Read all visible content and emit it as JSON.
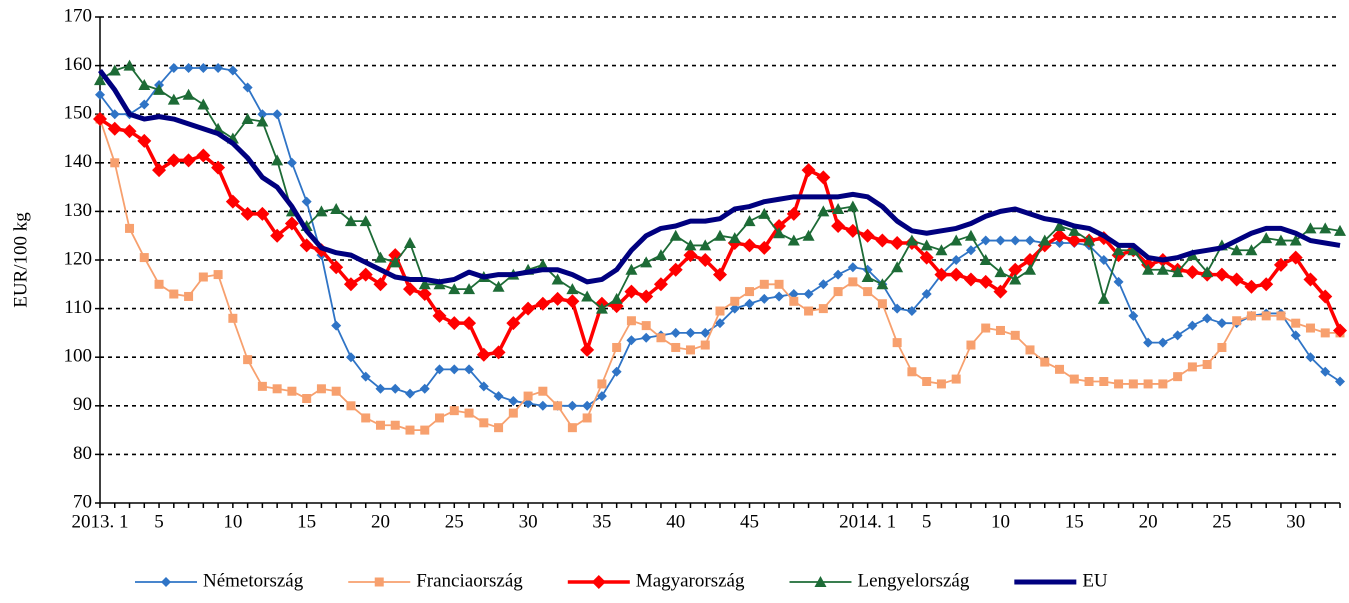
{
  "chart_data": {
    "type": "line",
    "ylabel": "EUR/100 kg",
    "categories": [
      "2013. 1",
      null,
      null,
      null,
      "5",
      null,
      null,
      null,
      null,
      "10",
      null,
      null,
      null,
      null,
      "15",
      null,
      null,
      null,
      null,
      "20",
      null,
      null,
      null,
      null,
      "25",
      null,
      null,
      null,
      null,
      "30",
      null,
      null,
      null,
      null,
      "35",
      null,
      null,
      null,
      null,
      "40",
      null,
      null,
      null,
      null,
      "45",
      null,
      null,
      null,
      null,
      null,
      null,
      null,
      "2014. 1",
      null,
      null,
      null,
      "5",
      null,
      null,
      null,
      null,
      "10",
      null,
      null,
      null,
      null,
      "15",
      null,
      null,
      null,
      null,
      "20",
      null,
      null,
      null,
      null,
      "25",
      null,
      null,
      null,
      null,
      "30",
      null,
      null,
      null
    ],
    "ylim": [
      70,
      170
    ],
    "yticks": [
      70,
      80,
      90,
      100,
      110,
      120,
      130,
      140,
      150,
      160,
      170
    ],
    "grid": true,
    "legend": "bottom",
    "series": [
      {
        "name": "Németország",
        "color": "#2f74c6",
        "marker": "diamond",
        "values": [
          154,
          150,
          150,
          152,
          156,
          159.5,
          159.5,
          159.5,
          159.5,
          159,
          155.5,
          150,
          150,
          140,
          132,
          121,
          106.5,
          100,
          96,
          93.5,
          93.5,
          92.5,
          93.5,
          97.5,
          97.5,
          97.5,
          94,
          92,
          91,
          90.5,
          90,
          90,
          90,
          90,
          92,
          97,
          103.5,
          104,
          104.5,
          105,
          105,
          105,
          107,
          110,
          111,
          112,
          112.5,
          113,
          113,
          115,
          117,
          118.5,
          118,
          115,
          110,
          109.5,
          113,
          117,
          120,
          122,
          124,
          124,
          124,
          124,
          123.5,
          123.5,
          123.5,
          123,
          120,
          115.5,
          108.5,
          103,
          103,
          104.5,
          106.5,
          108,
          107,
          107,
          108.5,
          109,
          109,
          104.5,
          100,
          97,
          95
        ]
      },
      {
        "name": "Franciaország",
        "color": "#f7a06e",
        "marker": "square",
        "values": [
          149,
          140,
          126.5,
          120.5,
          115,
          113,
          112.5,
          116.5,
          117,
          108,
          99.5,
          94,
          93.5,
          93,
          91.5,
          93.5,
          93,
          90,
          87.5,
          86,
          86,
          85,
          85,
          87.5,
          89,
          88.5,
          86.5,
          85.5,
          88.5,
          92,
          93,
          90,
          85.5,
          87.5,
          94.5,
          102,
          107.5,
          106.5,
          104,
          102,
          101.5,
          102.5,
          109.5,
          111.5,
          113.5,
          115,
          115,
          111.5,
          109.5,
          110,
          113.5,
          115.5,
          113.5,
          111,
          103,
          97,
          95,
          94.5,
          95.5,
          102.5,
          106,
          105.5,
          104.5,
          101.5,
          99,
          97.5,
          95.5,
          95,
          95,
          94.5,
          94.5,
          94.5,
          94.5,
          96,
          98,
          98.5,
          102,
          107.5,
          108.5,
          108.5,
          108.5,
          107,
          106,
          105,
          105
        ]
      },
      {
        "name": "Magyarország",
        "color": "#ff0000",
        "marker": "bigdiamond",
        "values": [
          149,
          147,
          146.5,
          144.5,
          138.5,
          140.5,
          140.5,
          141.5,
          139,
          132,
          129.5,
          129.5,
          125,
          127.5,
          123,
          122,
          118.5,
          115,
          117,
          115,
          121,
          114,
          113,
          108.5,
          107,
          107,
          100.5,
          101,
          107,
          110,
          111,
          112,
          111.5,
          101.5,
          111,
          110.5,
          113.5,
          112.5,
          115,
          118,
          121,
          120,
          117,
          123.5,
          123,
          122.5,
          127,
          129.5,
          138.5,
          137,
          127,
          126,
          125,
          124,
          123.5,
          123.5,
          120.5,
          117,
          117,
          116,
          115.5,
          113.5,
          118,
          120,
          123,
          125,
          124,
          124,
          124.5,
          121,
          122,
          119,
          120,
          118,
          117.5,
          117,
          117,
          116,
          114.5,
          115,
          119,
          120.5,
          116,
          112.5,
          105.5
        ]
      },
      {
        "name": "Lengyelország",
        "color": "#1d6b36",
        "marker": "triangle",
        "values": [
          157,
          159,
          160,
          156,
          155,
          153,
          154,
          152,
          147,
          145,
          149,
          148.5,
          140.5,
          130,
          127,
          130,
          130.5,
          128,
          128,
          120.5,
          119.5,
          123.5,
          115,
          115,
          114,
          114,
          116.5,
          114.5,
          117,
          118,
          119,
          116,
          114,
          112.5,
          110,
          112,
          118,
          119.5,
          121,
          125,
          123,
          123,
          125,
          124.5,
          128,
          129.5,
          125.5,
          124,
          125,
          130,
          130.5,
          131,
          116.5,
          115,
          118.5,
          124,
          123,
          122,
          124,
          125,
          120,
          117.5,
          116,
          118,
          124,
          127,
          126,
          124,
          112,
          122,
          122,
          118,
          118,
          117.5,
          121,
          117.5,
          123,
          122,
          122,
          124.5,
          124,
          124,
          126.5,
          126.5,
          126
        ]
      },
      {
        "name": "EU",
        "color": "#00007f",
        "marker": "none",
        "values": [
          159,
          155,
          150,
          149,
          149.5,
          149,
          148,
          147,
          146,
          144,
          141,
          137,
          135,
          131,
          126,
          122.5,
          121.5,
          121,
          119.5,
          118,
          116.5,
          116,
          116,
          115.5,
          116,
          117.5,
          116.5,
          117,
          117,
          117.5,
          118,
          118,
          117,
          115.5,
          116,
          118,
          122,
          125,
          126.5,
          127,
          128,
          128,
          128.5,
          130.5,
          131,
          132,
          132.5,
          133,
          133,
          133,
          133,
          133.5,
          133,
          131,
          128,
          126,
          125.5,
          126,
          126.5,
          127.5,
          129,
          130,
          130.5,
          129.5,
          128.5,
          128,
          127,
          126.5,
          125,
          123,
          123,
          120.5,
          120,
          120.5,
          121.5,
          122,
          122.5,
          124,
          125.5,
          126.5,
          126.5,
          125.5,
          124,
          123.5,
          123
        ]
      }
    ]
  }
}
